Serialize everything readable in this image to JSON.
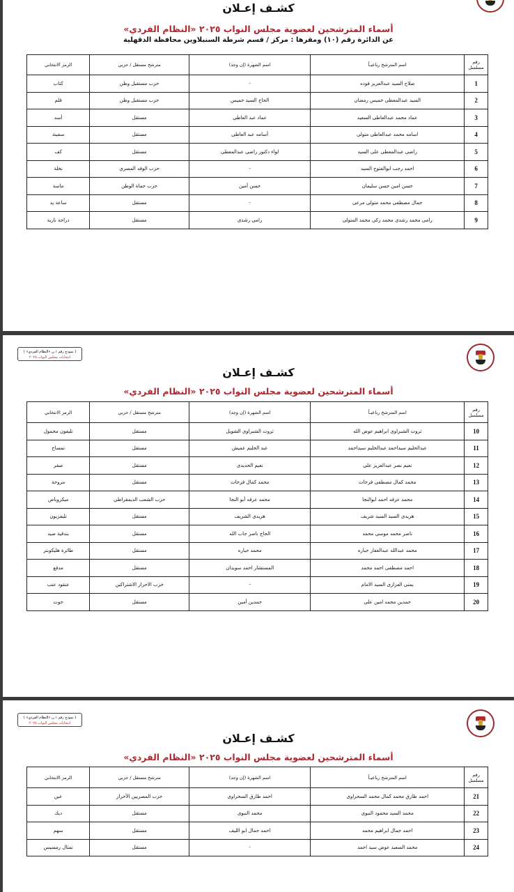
{
  "document": {
    "title": "كشـف إعـلان",
    "subtitle": "أسماء المترشحين لعضوية مجلس النواب ٢٠٢٥ «النظام الفردي»",
    "district_line": "عن الدائرة رقم (١٠) ومقرها : مركز / قسم شرطة السنبلاوين   محافظة الدقهلية",
    "stamp_line1": "( نموذج رقم ١ ن «النظام الفردي» )",
    "stamp_line2": "انتخابات مجلس النواب ٢٠٢٥",
    "colors": {
      "subtitle": "#b0272d",
      "separator": "#3a3a3a"
    },
    "logo_icon": "egypt-eagle-emblem"
  },
  "columns": {
    "serial": "رقم مسلسل",
    "name": "اسم المترشح رباعيـاً",
    "fame": "اسم الشهرة (إن وجد)",
    "type": "مترشح مستقل / حزبي",
    "symbol": "الرمز الانتخابي"
  },
  "pages": [
    {
      "rows": [
        [
          "1",
          "صلاح السيد عبدالعزيز فوده",
          "-",
          "حزب مستقبل وطن",
          "كتاب"
        ],
        [
          "2",
          "السيد عبدالمعطى خميس رمضان",
          "الحاج السيد خميس",
          "حزب مستقبل وطن",
          "قلم"
        ],
        [
          "3",
          "عماد محمد عبدالعاطى السعيد",
          "عماد عبد العاطى",
          "مستقل",
          "أسد"
        ],
        [
          "4",
          "اسامه محمد عبدالعاطى متولى",
          "أسامه عبد العاطى",
          "مستقل",
          "سفينة"
        ],
        [
          "5",
          "راضى عبدالمعطى على السيد",
          "لواء دكتور راضى عبدالمعطى",
          "مستقل",
          "كف"
        ],
        [
          "6",
          "احمد رجب ابوالفتوح السيد",
          "-",
          "حزب الوفد المصري",
          "نخلة"
        ],
        [
          "7",
          "حسن امين حسن سليمان",
          "حسن أمين",
          "حزب حماة الوطن",
          "ماسة"
        ],
        [
          "8",
          "جمال مصطفى محمد متولى مرعى",
          "-",
          "مستقل",
          "ساعة يد"
        ],
        [
          "9",
          "رامى محمد رشدى محمد زكى محمد المتولى",
          "رامى رشدى",
          "مستقل",
          "دراجة نارية"
        ]
      ]
    },
    {
      "rows": [
        [
          "10",
          "ثروت الشبراوى ابراهيم عوض الله",
          "ثروت الشبراوى الشويل",
          "مستقل",
          "تليفون محمول"
        ],
        [
          "11",
          "عبدالحليم سيداحمد عبدالحليم سيداحمد",
          "عبد الحليم عميش",
          "مستقل",
          "تمساح"
        ],
        [
          "12",
          "نعيم نصر عبدالعزيز على",
          "نعيم الحديدى",
          "مستقل",
          "صقر"
        ],
        [
          "13",
          "محمد كمال مصطفى فرحات",
          "محمد كمال فرحات",
          "مستقل",
          "مروحة"
        ],
        [
          "14",
          "محمد عرفه احمد ابوالنجا",
          "محمد عرفه أبو النجا",
          "حزب الشعب الديمقراطي",
          "ميكروباص"
        ],
        [
          "15",
          "هريدى السيد السيد شريف",
          "هريدى الشريف",
          "مستقل",
          "تليفزيون"
        ],
        [
          "16",
          "ناصر محمد موسى محمد",
          "الحاج ناصر جاب الله",
          "مستقل",
          "بندقية صيد"
        ],
        [
          "17",
          "محمد عبدالله عبدالغفار جباره",
          "محمد جباره",
          "مستقل",
          "طائرة هليكوبتر"
        ],
        [
          "18",
          "احمد مصطفى احمد محمد",
          "المستشار احمد سويدان",
          "مستقل",
          "مدفع"
        ],
        [
          "19",
          "يمنى العزازى السيد الامام",
          "-",
          "حزب الاحرار الاشتراكين",
          "عنقود عنب"
        ],
        [
          "20",
          "حمدين محمد امين على",
          "حمدين أمين",
          "مستقل",
          "حوت"
        ]
      ]
    },
    {
      "rows": [
        [
          "21",
          "احمد طارق محمد كمال محمد السحراوى",
          "احمد طارق السحراوى",
          "حزب المصريين الأحرار",
          "عين"
        ],
        [
          "22",
          "محمد السيد محمود النبوى",
          "محمد النبوى",
          "مستقل",
          "ديك"
        ],
        [
          "23",
          "احمد جمال ابراهيم محمد",
          "احمد جمال ابو الليف",
          "مستقل",
          "سهم"
        ],
        [
          "24",
          "محمد السعيد عوض سيد احمد",
          "-",
          "مستقل",
          "تمثال رمسيس"
        ]
      ]
    }
  ]
}
